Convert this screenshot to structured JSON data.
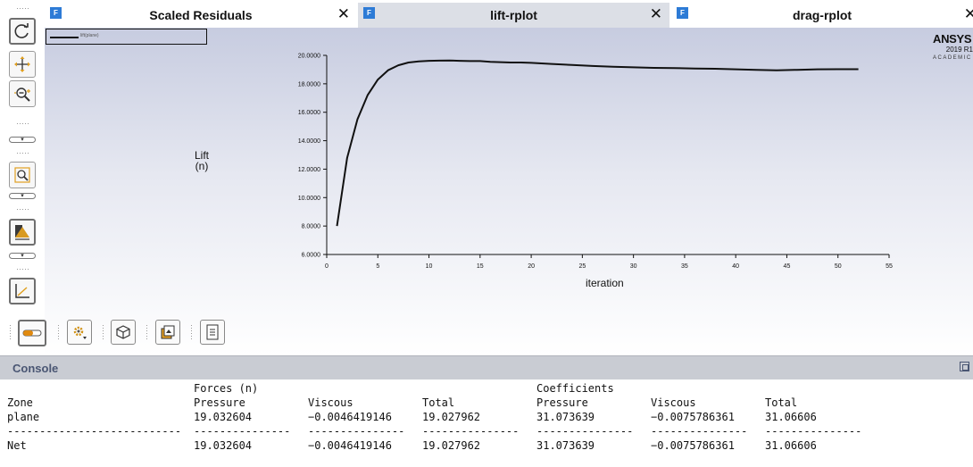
{
  "tabs": [
    {
      "label": "Scaled Residuals",
      "icon": "F"
    },
    {
      "label": "lift-rplot",
      "icon": "F"
    },
    {
      "label": "drag-rplot",
      "icon": "F"
    }
  ],
  "branding": {
    "name": "ANSYS",
    "version": "2019 R1",
    "edition": "ACADEMIC"
  },
  "chart_data": {
    "type": "line",
    "title": "",
    "xlabel": "iteration",
    "ylabel_line1": "Lift",
    "ylabel_line2": "(n)",
    "xlim": [
      0,
      55
    ],
    "ylim": [
      6,
      20
    ],
    "xticks": [
      0,
      5,
      10,
      15,
      20,
      25,
      30,
      35,
      40,
      45,
      50,
      55
    ],
    "yticks": [
      "6.0000",
      "8.0000",
      "10.0000",
      "12.0000",
      "14.0000",
      "16.0000",
      "18.0000",
      "20.0000"
    ],
    "legend_text": "lift(plane)",
    "series": [
      {
        "x": [
          1,
          2,
          3,
          4,
          5,
          6,
          7,
          8,
          9,
          10,
          11,
          12,
          13,
          14,
          15,
          16,
          17,
          18,
          19,
          20,
          22,
          24,
          26,
          28,
          30,
          32,
          34,
          36,
          38,
          40,
          42,
          44,
          46,
          48,
          50,
          52
        ],
        "y": [
          8.0,
          12.8,
          15.5,
          17.2,
          18.3,
          18.95,
          19.3,
          19.5,
          19.58,
          19.62,
          19.63,
          19.64,
          19.62,
          19.6,
          19.6,
          19.55,
          19.52,
          19.5,
          19.5,
          19.47,
          19.4,
          19.32,
          19.25,
          19.2,
          19.16,
          19.12,
          19.1,
          19.08,
          19.06,
          19.02,
          18.98,
          18.95,
          18.98,
          19.02,
          19.03,
          19.03
        ]
      }
    ]
  },
  "console": {
    "title": "Console",
    "header_group1": "Forces (n)",
    "header_group2": "Coefficients",
    "columns": [
      "Zone",
      "Pressure",
      "Viscous",
      "Total",
      "Pressure",
      "Viscous",
      "Total"
    ],
    "row_plane": [
      "plane",
      "19.032604",
      "−0.0046419146",
      "19.027962",
      "31.073639",
      "−0.0075786361",
      "31.06606"
    ],
    "separator": [
      "---------------------------",
      "---------------",
      "---------------",
      "---------------",
      "---------------",
      "---------------",
      "---------------"
    ],
    "row_net": [
      "Net",
      "19.032604",
      "−0.0046419146",
      "19.027962",
      "31.073639",
      "−0.0075786361",
      "31.06606"
    ]
  }
}
